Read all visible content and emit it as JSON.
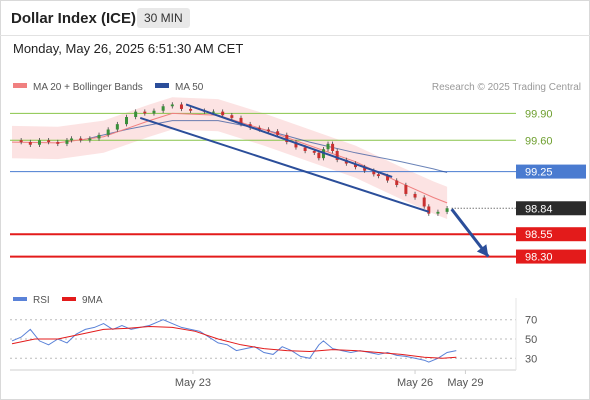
{
  "header": {
    "title": "Dollar Index (ICE)",
    "timeframe": "30 MIN",
    "datetime": "Monday, May 26, 2025 6:51:30 AM CET"
  },
  "colors": {
    "bollinger": "#f08080",
    "ma50": "#2b4e9a",
    "level_green": "#88c44a",
    "level_blue": "#4a7bd0",
    "level_red": "#e31b1b",
    "last_price_box": "#2b2b2b",
    "rsi": "#5a82d8",
    "rsi_ma": "#e31b1b",
    "candle_up": "#3a8f3a",
    "candle_down": "#c93030"
  },
  "chart_data": [
    {
      "type": "line",
      "title": "",
      "legend": [
        {
          "name": "MA 20 + Bollinger Bands",
          "color": "#f08080"
        },
        {
          "name": "MA 50",
          "color": "#2b4e9a"
        }
      ],
      "legend_position": "top-left",
      "watermark": "Research © 2025 Trading Central",
      "x_ticks": [
        "May 23",
        "May 26",
        "May 29"
      ],
      "ylim": [
        98.15,
        100.05
      ],
      "levels": [
        {
          "label": "99.90",
          "value": 99.9,
          "style": "green"
        },
        {
          "label": "99.60",
          "value": 99.6,
          "style": "green"
        },
        {
          "label": "99.25",
          "value": 99.25,
          "style": "blue"
        },
        {
          "label": "98.84",
          "value": 98.84,
          "style": "last"
        },
        {
          "label": "98.55",
          "value": 98.55,
          "style": "red"
        },
        {
          "label": "98.30",
          "value": 98.3,
          "style": "red"
        }
      ],
      "series": [
        {
          "name": "Price",
          "points": [
            [
              0,
              99.6
            ],
            [
              4,
              99.58
            ],
            [
              8,
              99.55
            ],
            [
              12,
              99.6
            ],
            [
              16,
              99.58
            ],
            [
              20,
              99.56
            ],
            [
              24,
              99.6
            ],
            [
              26,
              99.62
            ],
            [
              30,
              99.6
            ],
            [
              34,
              99.62
            ],
            [
              38,
              99.66
            ],
            [
              42,
              99.72
            ],
            [
              46,
              99.78
            ],
            [
              50,
              99.86
            ],
            [
              54,
              99.92
            ],
            [
              58,
              99.9
            ],
            [
              62,
              99.93
            ],
            [
              66,
              99.98
            ],
            [
              70,
              100.0
            ],
            [
              74,
              99.95
            ],
            [
              78,
              99.93
            ],
            [
              84,
              99.92
            ],
            [
              88,
              99.92
            ],
            [
              92,
              99.88
            ],
            [
              96,
              99.85
            ],
            [
              100,
              99.78
            ],
            [
              104,
              99.74
            ],
            [
              108,
              99.72
            ],
            [
              112,
              99.7
            ],
            [
              116,
              99.66
            ],
            [
              120,
              99.58
            ],
            [
              124,
              99.52
            ],
            [
              128,
              99.48
            ],
            [
              132,
              99.46
            ],
            [
              134,
              99.4
            ],
            [
              136,
              99.5
            ],
            [
              138,
              99.56
            ],
            [
              140,
              99.48
            ],
            [
              142,
              99.38
            ],
            [
              146,
              99.34
            ],
            [
              150,
              99.3
            ],
            [
              154,
              99.26
            ],
            [
              158,
              99.22
            ],
            [
              160,
              99.2
            ],
            [
              164,
              99.15
            ],
            [
              168,
              99.1
            ],
            [
              172,
              99.0
            ],
            [
              176,
              98.96
            ],
            [
              180,
              98.86
            ],
            [
              182,
              98.78
            ],
            [
              186,
              98.8
            ],
            [
              190,
              98.84
            ]
          ]
        },
        {
          "name": "MA 50",
          "points": [
            [
              30,
              99.6
            ],
            [
              50,
              99.72
            ],
            [
              70,
              99.82
            ],
            [
              90,
              99.82
            ],
            [
              110,
              99.72
            ],
            [
              130,
              99.58
            ],
            [
              150,
              99.46
            ],
            [
              170,
              99.36
            ],
            [
              184,
              99.28
            ],
            [
              190,
              99.24
            ]
          ]
        },
        {
          "name": "MA 20",
          "points": [
            [
              0,
              99.58
            ],
            [
              20,
              99.57
            ],
            [
              40,
              99.64
            ],
            [
              60,
              99.82
            ],
            [
              70,
              99.9
            ],
            [
              90,
              99.88
            ],
            [
              110,
              99.72
            ],
            [
              130,
              99.54
            ],
            [
              150,
              99.36
            ],
            [
              170,
              99.12
            ],
            [
              184,
              98.96
            ],
            [
              190,
              98.9
            ]
          ]
        }
      ],
      "trendlines": [
        {
          "points": [
            [
              76,
              100.0
            ],
            [
              166,
              99.19
            ]
          ]
        },
        {
          "points": [
            [
              56,
              99.85
            ],
            [
              182,
              98.8
            ]
          ]
        }
      ],
      "projection": {
        "from": [
          192,
          98.83
        ],
        "to": [
          208,
          98.3
        ]
      }
    },
    {
      "type": "line",
      "title": "",
      "legend": [
        {
          "name": "RSI",
          "color": "#5a82d8"
        },
        {
          "name": "9MA",
          "color": "#e31b1b"
        }
      ],
      "legend_position": "top-left",
      "ylim": [
        22,
        78
      ],
      "y_ticks": [
        70,
        50,
        30
      ],
      "series": [
        {
          "name": "RSI",
          "points": [
            [
              0,
              48
            ],
            [
              4,
              52
            ],
            [
              8,
              60
            ],
            [
              12,
              48
            ],
            [
              16,
              44
            ],
            [
              20,
              50
            ],
            [
              24,
              46
            ],
            [
              28,
              55
            ],
            [
              32,
              60
            ],
            [
              36,
              62
            ],
            [
              40,
              66
            ],
            [
              44,
              60
            ],
            [
              48,
              64
            ],
            [
              52,
              60
            ],
            [
              56,
              62
            ],
            [
              60,
              64
            ],
            [
              64,
              68
            ],
            [
              66,
              70
            ],
            [
              70,
              66
            ],
            [
              74,
              62
            ],
            [
              78,
              60
            ],
            [
              82,
              58
            ],
            [
              86,
              52
            ],
            [
              90,
              46
            ],
            [
              94,
              44
            ],
            [
              98,
              38
            ],
            [
              102,
              40
            ],
            [
              106,
              42
            ],
            [
              110,
              36
            ],
            [
              114,
              34
            ],
            [
              118,
              42
            ],
            [
              122,
              38
            ],
            [
              126,
              32
            ],
            [
              130,
              30
            ],
            [
              134,
              44
            ],
            [
              136,
              48
            ],
            [
              140,
              40
            ],
            [
              144,
              38
            ],
            [
              148,
              36
            ],
            [
              152,
              38
            ],
            [
              156,
              36
            ],
            [
              160,
              34
            ],
            [
              164,
              36
            ],
            [
              168,
              33
            ],
            [
              172,
              32
            ],
            [
              176,
              30
            ],
            [
              180,
              28
            ],
            [
              182,
              26
            ],
            [
              186,
              30
            ],
            [
              190,
              36
            ],
            [
              194,
              38
            ]
          ]
        },
        {
          "name": "9MA",
          "points": [
            [
              0,
              45
            ],
            [
              10,
              50
            ],
            [
              20,
              50
            ],
            [
              30,
              55
            ],
            [
              40,
              60
            ],
            [
              50,
              61
            ],
            [
              60,
              63
            ],
            [
              70,
              62
            ],
            [
              80,
              58
            ],
            [
              90,
              50
            ],
            [
              100,
              44
            ],
            [
              110,
              40
            ],
            [
              120,
              38
            ],
            [
              130,
              37
            ],
            [
              140,
              39
            ],
            [
              150,
              38
            ],
            [
              160,
              36
            ],
            [
              170,
              34
            ],
            [
              180,
              31
            ],
            [
              188,
              30
            ],
            [
              194,
              31
            ]
          ]
        }
      ]
    }
  ]
}
